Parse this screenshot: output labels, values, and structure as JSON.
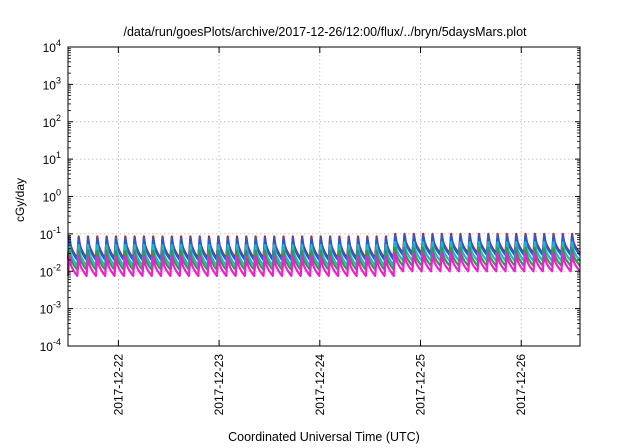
{
  "chart_data": {
    "type": "line",
    "title": "/data/run/goesPlots/archive/2017-12-26/12:00/flux/../bryn/5daysMars.plot",
    "xlabel": "Coordinated Universal Time (UTC)",
    "ylabel": "cGy/day",
    "yscale": "log",
    "ylim_exponents": [
      -4,
      4
    ],
    "y_tick_base": "10",
    "y_tick_exponents": [
      "-4",
      "-3",
      "-2",
      "-1",
      "0",
      "1",
      "2",
      "3",
      "4"
    ],
    "xlim": [
      "2017-12-21 12:00",
      "2017-12-26 14:00"
    ],
    "x_tick_labels": [
      "2017-12-22",
      "2017-12-23",
      "2017-12-24",
      "2017-12-25",
      "2017-12-26"
    ],
    "grid": true,
    "legend": "none",
    "pattern": {
      "sawtooth_cycles": 55,
      "note": "periodic sawtooth series; each cycle rises sharply then decays; slight step up after 2017-12-25"
    },
    "series": [
      {
        "color": "#d01c1c",
        "peak": 0.085,
        "trough": 0.022,
        "late_peak": 0.1,
        "late_trough": 0.03
      },
      {
        "color": "#1e5fd8",
        "peak": 0.075,
        "trough": 0.02,
        "late_peak": 0.09,
        "late_trough": 0.027
      },
      {
        "color": "#20b8c8",
        "peak": 0.05,
        "trough": 0.014,
        "late_peak": 0.06,
        "late_trough": 0.019
      },
      {
        "color": "#2e9a4a",
        "peak": 0.035,
        "trough": 0.011,
        "late_peak": 0.042,
        "late_trough": 0.014
      },
      {
        "color": "#ee22cc",
        "peak": 0.025,
        "trough": 0.0075,
        "late_peak": 0.03,
        "late_trough": 0.01
      }
    ]
  }
}
